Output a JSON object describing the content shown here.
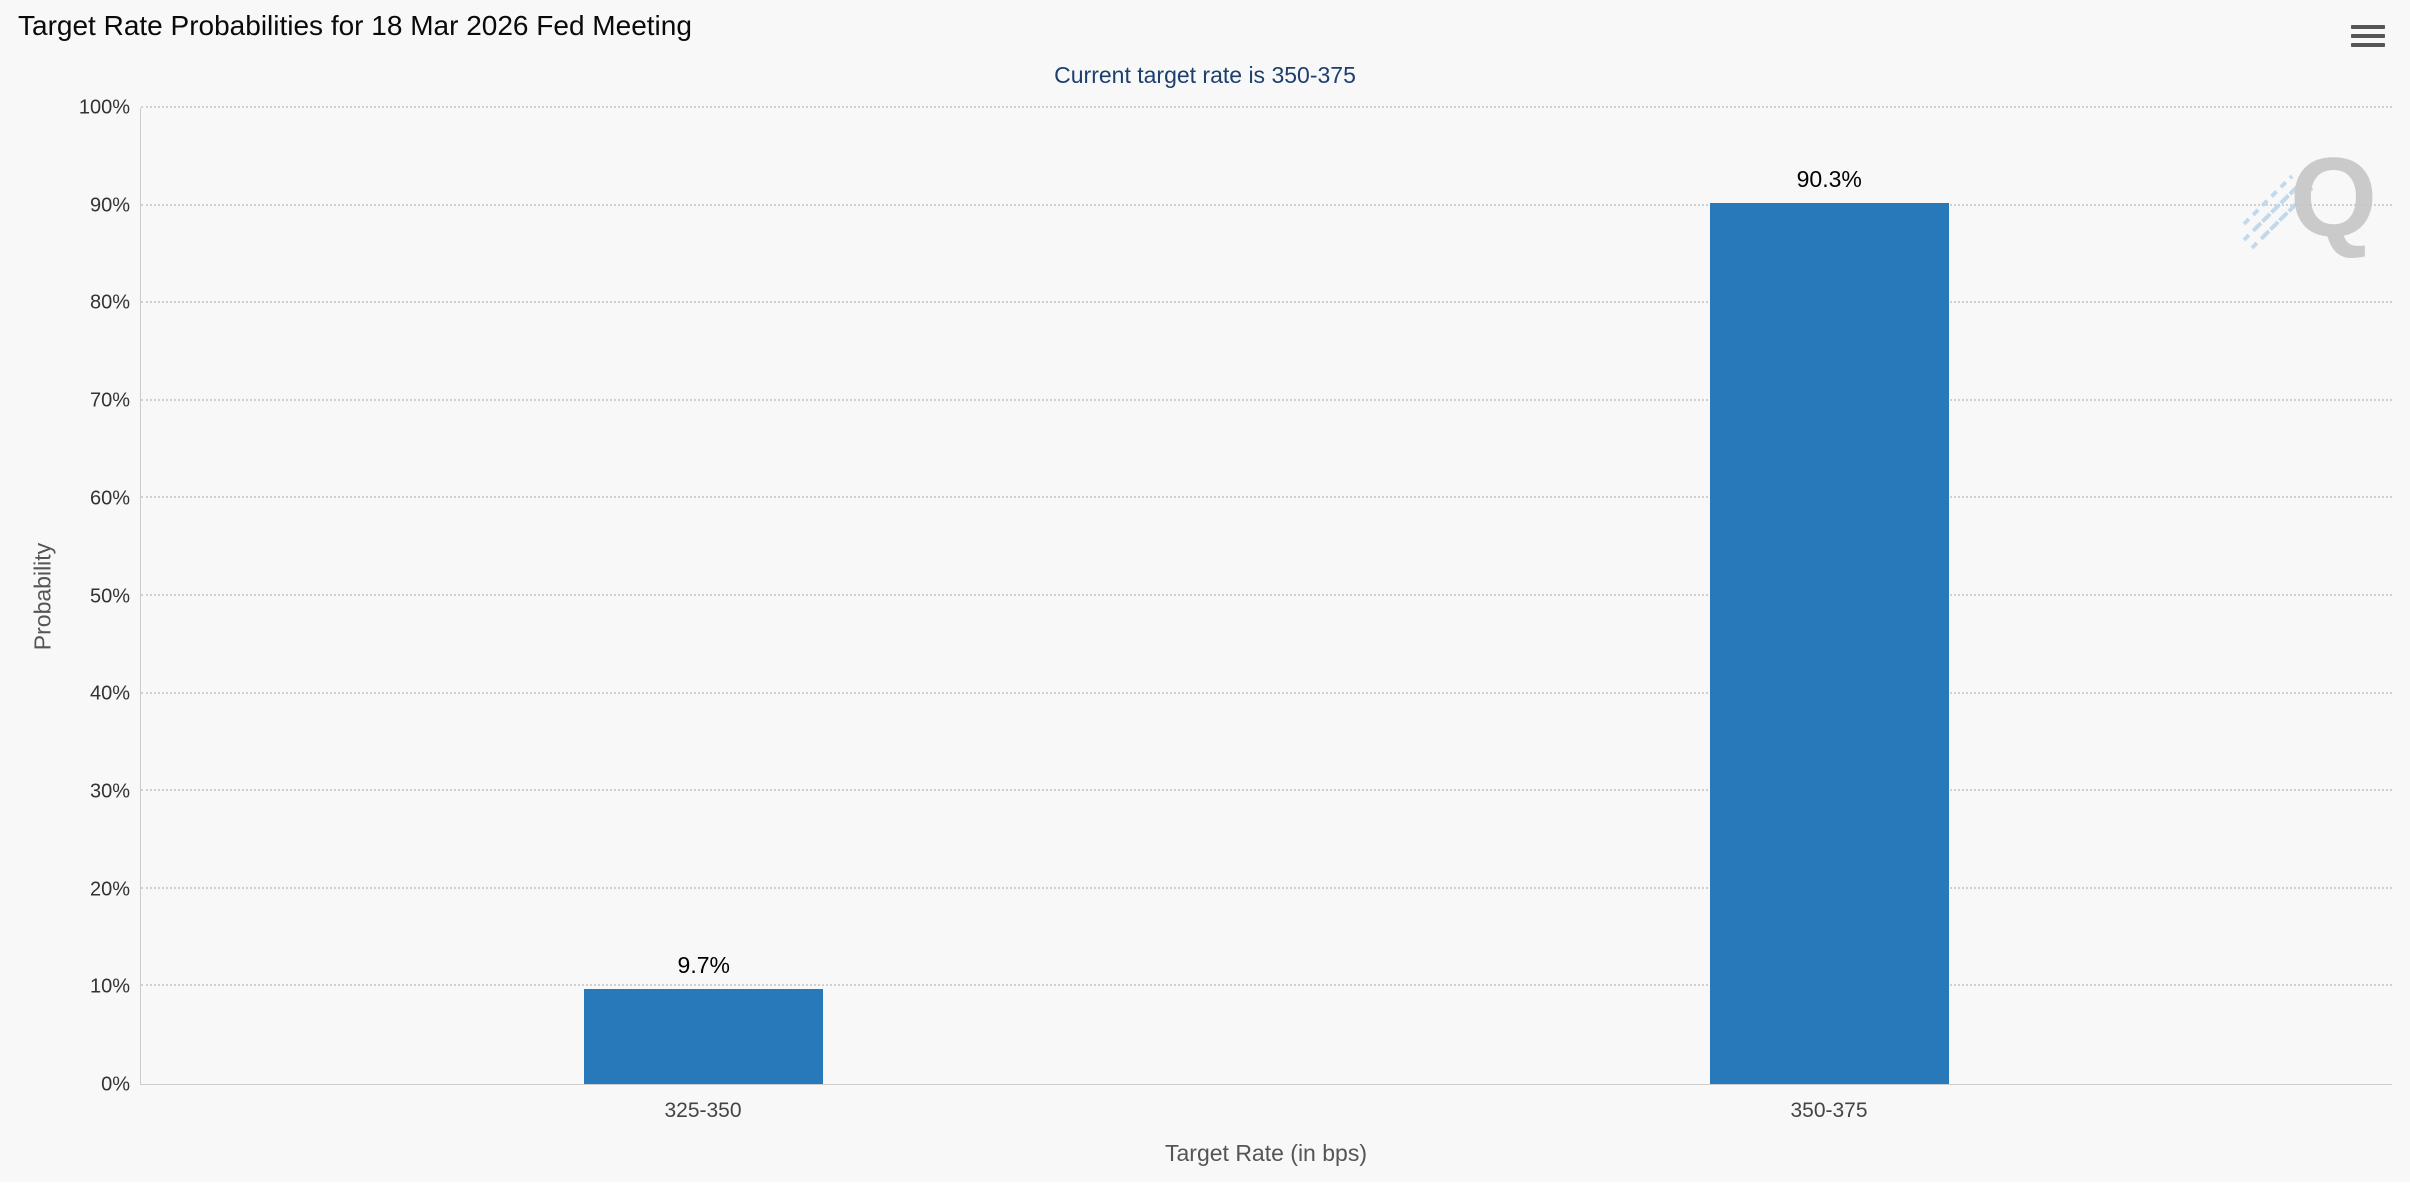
{
  "header": {
    "title": "Target Rate Probabilities for 18 Mar 2026 Fed Meeting",
    "subtitle": "Current target rate is 350-375"
  },
  "toolbar": {
    "menu_icon": "hamburger-menu-icon"
  },
  "watermark": {
    "letter": "Q"
  },
  "colors": {
    "bar": "#2879b9",
    "subtitle_text": "#1c3f6e",
    "background": "#f8f8f8",
    "grid": "#cfcfcf"
  },
  "chart_data": {
    "type": "bar",
    "title": "Target Rate Probabilities for 18 Mar 2026 Fed Meeting",
    "subtitle": "Current target rate is 350-375",
    "categories": [
      "325-350",
      "350-375"
    ],
    "values": [
      9.7,
      90.3
    ],
    "value_labels": [
      "9.7%",
      "90.3%"
    ],
    "xlabel": "Target Rate (in bps)",
    "ylabel": "Probability",
    "ylim": [
      0,
      100
    ],
    "ytick_step": 10,
    "ytick_labels": [
      "0%",
      "10%",
      "20%",
      "30%",
      "40%",
      "50%",
      "60%",
      "70%",
      "80%",
      "90%",
      "100%"
    ],
    "grid": "dotted-horizontal",
    "legend": "none",
    "bar_color": "#2879b9",
    "bar_width_pct": 10.6
  }
}
